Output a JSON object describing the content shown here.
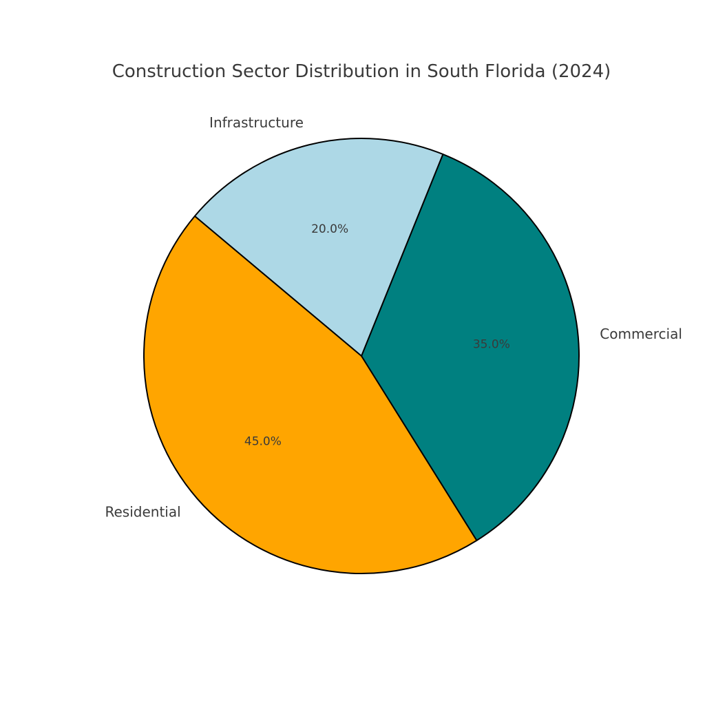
{
  "chart_data": {
    "type": "pie",
    "title": "Construction Sector Distribution in South Florida (2024)",
    "categories": [
      "Residential",
      "Commercial",
      "Infrastructure"
    ],
    "values": [
      45.0,
      35.0,
      20.0
    ],
    "percent_labels": [
      "45.0%",
      "35.0%",
      "20.0%"
    ],
    "colors": [
      "#FFA500",
      "#008080",
      "#ADD8E6"
    ],
    "edge_color": "#000000",
    "start_angle_deg": 140,
    "direction": "counterclockwise"
  }
}
